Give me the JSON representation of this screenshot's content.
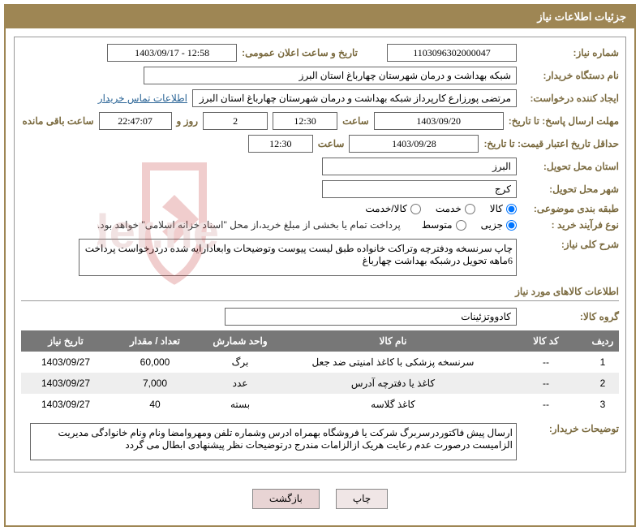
{
  "header": {
    "title": "جزئیات اطلاعات نیاز"
  },
  "labels": {
    "need_no": "شماره نیاز:",
    "announce_dt": "تاریخ و ساعت اعلان عمومی:",
    "buyer_org": "نام دستگاه خریدار:",
    "requester": "ایجاد کننده درخواست:",
    "contact_link": "اطلاعات تماس خریدار",
    "deadline": "مهلت ارسال پاسخ: تا تاریخ:",
    "saat": "ساعت",
    "rooz_va": "روز و",
    "remaining": "ساعت باقی مانده",
    "min_validity": "حداقل تاریخ اعتبار قیمت: تا تاریخ:",
    "province": "استان محل تحویل:",
    "city": "شهر محل تحویل:",
    "category": "طبقه بندی موضوعی:",
    "purchase_type": "نوع فرآیند خرید :",
    "payment_note": "پرداخت تمام یا بخشی از مبلغ خرید،از محل \"اسناد خزانه اسلامی\" خواهد بود.",
    "general_desc": "شرح کلی نیاز:",
    "goods_section": "اطلاعات کالاهای مورد نیاز",
    "goods_group": "گروه کالا:",
    "buyer_notes": "توضیحات خریدار:"
  },
  "fields": {
    "need_no": "1103096302000047",
    "announce_dt": "1403/09/17 - 12:58",
    "buyer_org": "شبکه بهداشت و درمان شهرستان چهارباغ استان البرز",
    "requester": "مرتضی پورزارع کارپرداز شبکه بهداشت و درمان شهرستان چهارباغ استان البرز",
    "deadline_date": "1403/09/20",
    "deadline_time": "12:30",
    "remaining_days": "2",
    "remaining_time": "22:47:07",
    "validity_date": "1403/09/28",
    "validity_time": "12:30",
    "province": "البرز",
    "city": "کرج",
    "general_desc": "چاپ سرنسخه ودفترچه وتراکت خانواده طبق لیست پیوست وتوضیحات وابعادارایه شده دردرخواست پرداخت 6ماهه تحویل درشبکه بهداشت چهارباغ",
    "goods_group": "کادووتزئینات",
    "buyer_notes": "ارسال پیش فاکتوردرسربرگ شرکت یا فروشگاه بهمراه ادرس وشماره تلفن ومهروامضا ونام ونام خانوادگی مدیریت الزامیست درصورت عدم رعایت هریک ازالزامات مندرج درتوضیحات نظر پیشنهادی ابطال می گردد"
  },
  "radios": {
    "category": [
      {
        "label": "کالا",
        "checked": true
      },
      {
        "label": "خدمت",
        "checked": false
      },
      {
        "label": "کالا/خدمت",
        "checked": false
      }
    ],
    "purchase_type": [
      {
        "label": "جزیی",
        "checked": true
      },
      {
        "label": "متوسط",
        "checked": false
      }
    ]
  },
  "table": {
    "headers": [
      "ردیف",
      "کد کالا",
      "نام کالا",
      "واحد شمارش",
      "تعداد / مقدار",
      "تاریخ نیاز"
    ],
    "rows": [
      [
        "1",
        "--",
        "سرنسخه پزشکی با کاغذ امنیتی ضد جعل",
        "برگ",
        "60,000",
        "1403/09/27"
      ],
      [
        "2",
        "--",
        "کاغذ یا دفترچه آدرس",
        "عدد",
        "7,000",
        "1403/09/27"
      ],
      [
        "3",
        "--",
        "کاغذ گلاسه",
        "بسته",
        "40",
        "1403/09/27"
      ]
    ]
  },
  "buttons": {
    "print": "چاپ",
    "back": "بازگشت"
  }
}
